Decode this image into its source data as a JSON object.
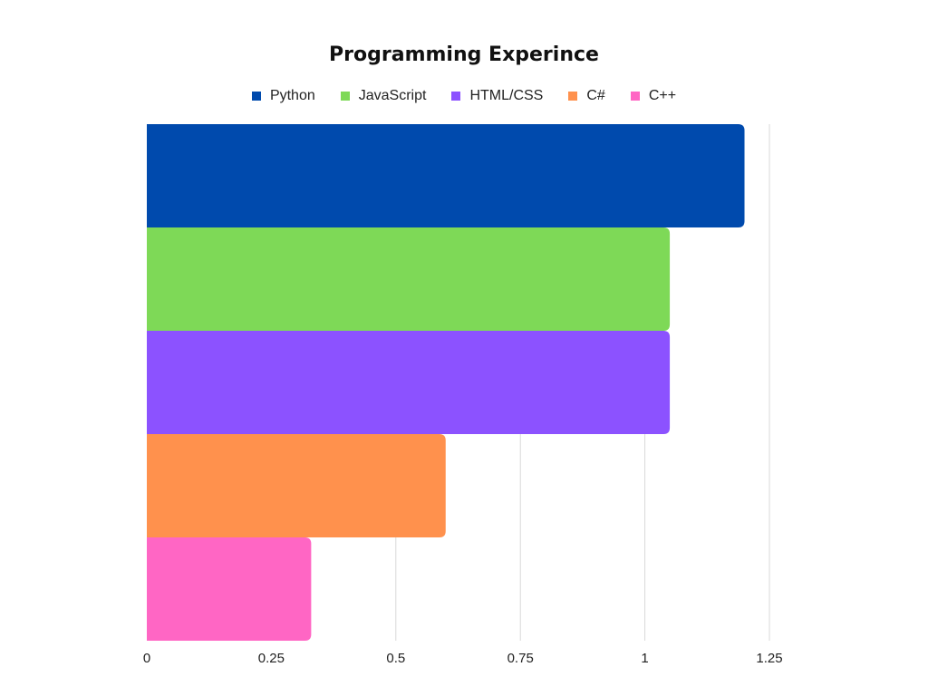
{
  "chart_data": {
    "type": "bar",
    "orientation": "horizontal",
    "title": "Programming Experince",
    "xlabel": "",
    "ylabel": "",
    "categories": [
      "Python",
      "JavaScript",
      "HTML/CSS",
      "C#",
      "C++"
    ],
    "values": [
      1.2,
      1.05,
      1.05,
      0.6,
      0.33
    ],
    "colors": [
      "#004AAD",
      "#7ED957",
      "#8C52FF",
      "#FF914D",
      "#FF66C4"
    ],
    "xlim": [
      0,
      1.25
    ],
    "xticks": [
      0,
      0.25,
      0.5,
      0.75,
      1,
      1.25
    ],
    "xtick_labels": [
      "0",
      "0.25",
      "0.5",
      "0.75",
      "1",
      "1.25"
    ],
    "grid": true,
    "legend_position": "top"
  }
}
